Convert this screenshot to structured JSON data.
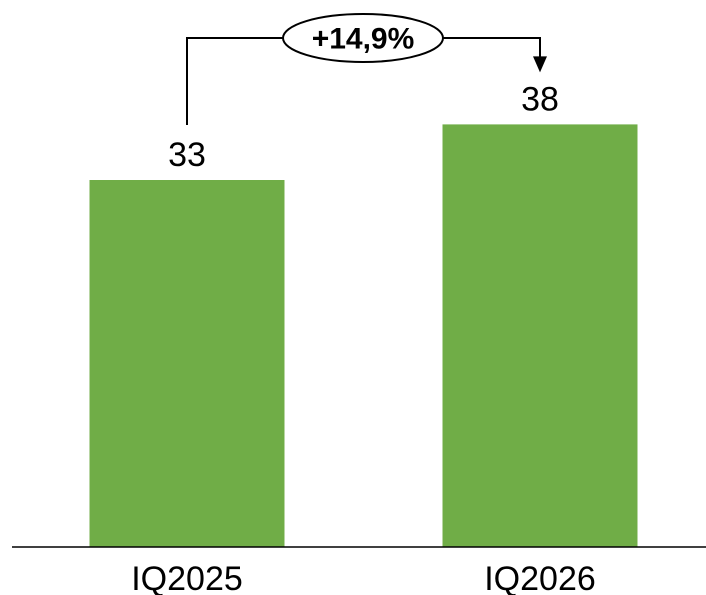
{
  "chart_data": {
    "type": "bar",
    "categories": [
      "IQ2025",
      "IQ2026"
    ],
    "values": [
      33,
      38
    ],
    "data_labels": [
      "33",
      "38"
    ],
    "ylim": [
      0,
      42
    ],
    "grid": false,
    "legend": "none",
    "bar_color": "#70AD47",
    "annotation": {
      "text": "+14,9%",
      "from": "IQ2025",
      "to": "IQ2026"
    }
  }
}
